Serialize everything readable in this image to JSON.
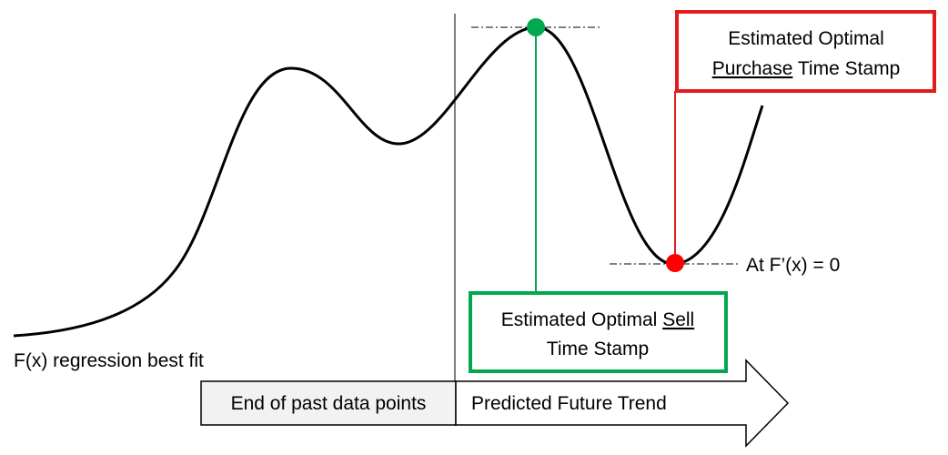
{
  "labels": {
    "purchase_box": {
      "line1": "Estimated Optimal",
      "line2_underlined": "Purchase",
      "line2_rest": " Time Stamp"
    },
    "sell_box": {
      "line1_prefix": "Estimated Optimal ",
      "line1_underlined": "Sell",
      "line2": "Time Stamp"
    },
    "derivative_label": "At F’(x) = 0",
    "curve_label": "F(x) regression best fit",
    "past_box": "End of past data points",
    "future_arrow": "Predicted Future Trend"
  },
  "colors": {
    "purchase": "#e31b1b",
    "sell": "#00a84f",
    "curve": "#000000",
    "past_box_fill": "#f2f2f2"
  }
}
